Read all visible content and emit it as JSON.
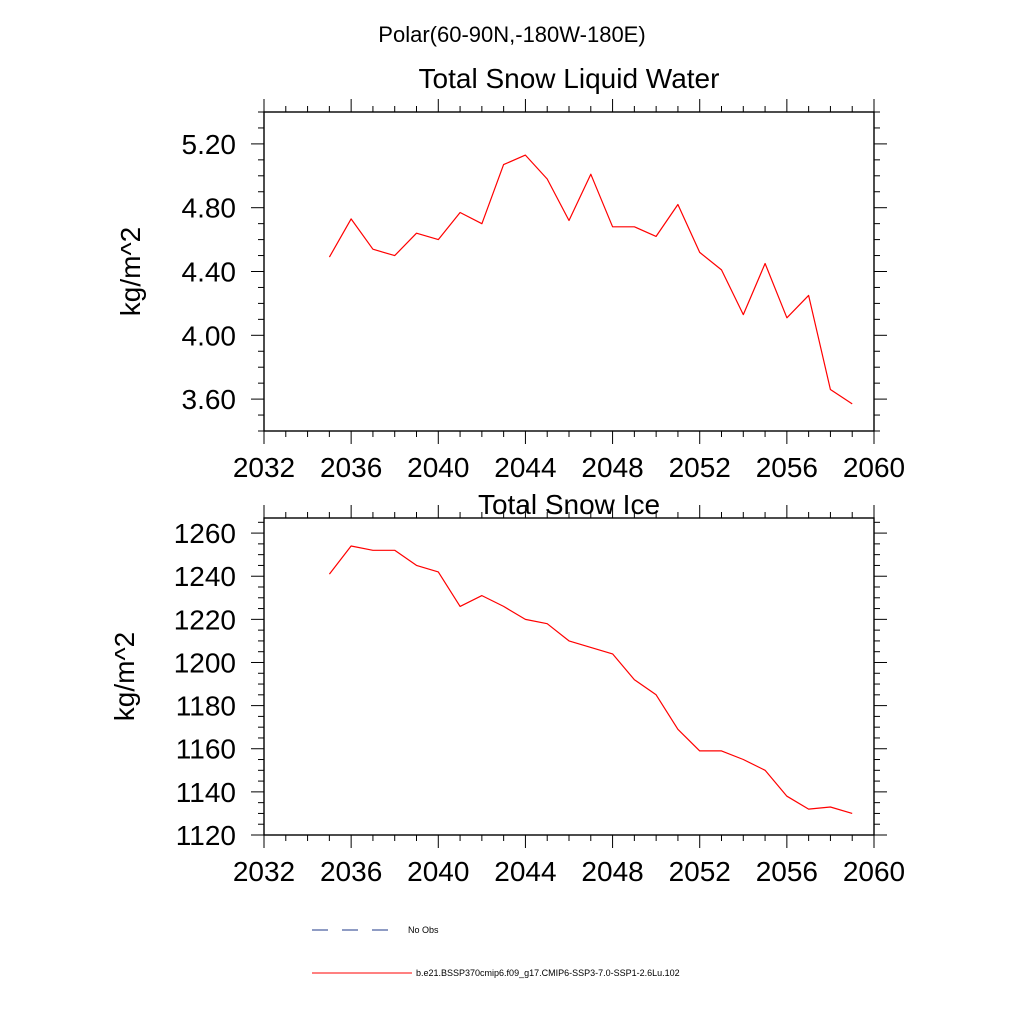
{
  "figure": {
    "title": "Polar(60-90N,-180W-180E)"
  },
  "chart_data": [
    {
      "type": "line",
      "title": "Total Snow Liquid Water",
      "xlabel": "",
      "ylabel": "kg/m^2",
      "xlim": [
        2032,
        2060
      ],
      "ylim": [
        3.4,
        5.4
      ],
      "xticks": [
        2032,
        2036,
        2040,
        2044,
        2048,
        2052,
        2056,
        2060
      ],
      "xtick_labels": [
        "2032",
        "2036",
        "2040",
        "2044",
        "2048",
        "2052",
        "2056",
        "2060"
      ],
      "yticks": [
        3.6,
        4.0,
        4.4,
        4.8,
        5.2
      ],
      "ytick_labels": [
        "3.60",
        "4.00",
        "4.40",
        "4.80",
        "5.20"
      ],
      "grid": false,
      "series": [
        {
          "name": "b.e21.BSSP370cmip6.f09_g17.CMIP6-SSP3-7.0-SSP1-2.6Lu.102",
          "color": "#ff0000",
          "x": [
            2035,
            2036,
            2037,
            2038,
            2039,
            2040,
            2041,
            2042,
            2043,
            2044,
            2045,
            2046,
            2047,
            2048,
            2049,
            2050,
            2051,
            2052,
            2053,
            2054,
            2055,
            2056,
            2057,
            2058,
            2059
          ],
          "y": [
            4.49,
            4.73,
            4.54,
            4.5,
            4.64,
            4.6,
            4.77,
            4.7,
            5.07,
            5.13,
            4.98,
            4.72,
            5.01,
            4.68,
            4.68,
            4.62,
            4.82,
            4.52,
            4.41,
            4.13,
            4.45,
            4.11,
            4.25,
            3.66,
            3.57
          ]
        }
      ]
    },
    {
      "type": "line",
      "title": "Total Snow Ice",
      "xlabel": "",
      "ylabel": "kg/m^2",
      "xlim": [
        2032,
        2060
      ],
      "ylim": [
        1120,
        1267
      ],
      "xticks": [
        2032,
        2036,
        2040,
        2044,
        2048,
        2052,
        2056,
        2060
      ],
      "xtick_labels": [
        "2032",
        "2036",
        "2040",
        "2044",
        "2048",
        "2052",
        "2056",
        "2060"
      ],
      "yticks": [
        1120,
        1140,
        1160,
        1180,
        1200,
        1220,
        1240,
        1260
      ],
      "ytick_labels": [
        "1120",
        "1140",
        "1160",
        "1180",
        "1200",
        "1220",
        "1240",
        "1260"
      ],
      "grid": false,
      "series": [
        {
          "name": "b.e21.BSSP370cmip6.f09_g17.CMIP6-SSP3-7.0-SSP1-2.6Lu.102",
          "color": "#ff0000",
          "x": [
            2035,
            2036,
            2037,
            2038,
            2039,
            2040,
            2041,
            2042,
            2043,
            2044,
            2045,
            2046,
            2047,
            2048,
            2049,
            2050,
            2051,
            2052,
            2053,
            2054,
            2055,
            2056,
            2057,
            2058,
            2059
          ],
          "y": [
            1241,
            1254,
            1252,
            1252,
            1245,
            1242,
            1226,
            1231,
            1226,
            1220,
            1218,
            1210,
            1207,
            1204,
            1192,
            1185,
            1169,
            1159,
            1159,
            1155,
            1150,
            1138,
            1132,
            1133,
            1130
          ]
        }
      ]
    }
  ],
  "legend": {
    "placement": "bottom",
    "entries": [
      {
        "label": "No Obs",
        "color": "#1f3a8a",
        "style": "dashed"
      },
      {
        "label": "b.e21.BSSP370cmip6.f09_g17.CMIP6-SSP3-7.0-SSP1-2.6Lu.102",
        "color": "#ff0000",
        "style": "solid"
      }
    ]
  }
}
